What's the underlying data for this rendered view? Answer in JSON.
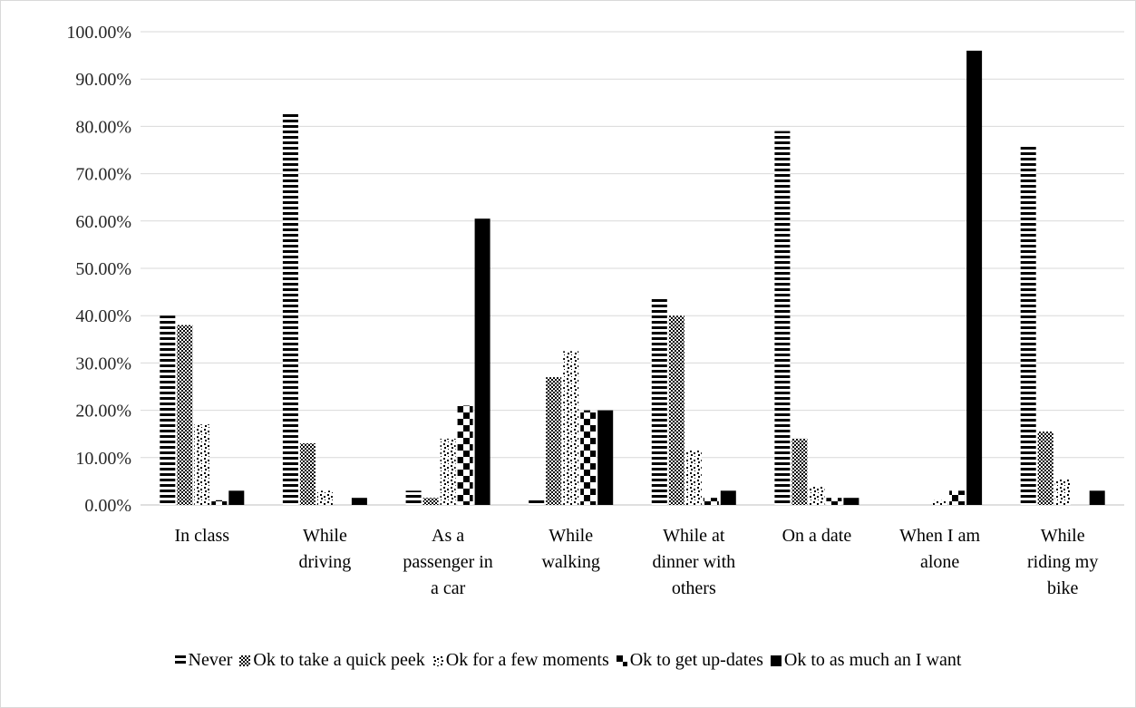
{
  "chart_data": {
    "type": "bar",
    "title": "",
    "xlabel": "",
    "ylabel": "",
    "ylim": [
      0,
      1
    ],
    "yticks": [
      "0.00%",
      "10.00%",
      "20.00%",
      "30.00%",
      "40.00%",
      "50.00%",
      "60.00%",
      "70.00%",
      "80.00%",
      "90.00%",
      "100.00%"
    ],
    "grid": true,
    "legend_position": "bottom",
    "categories": [
      [
        "In class"
      ],
      [
        "While",
        "driving"
      ],
      [
        "As a",
        "passenger in",
        "a car"
      ],
      [
        "While",
        "walking"
      ],
      [
        "While at",
        "dinner with",
        "others"
      ],
      [
        "On a date"
      ],
      [
        "When I am",
        "alone"
      ],
      [
        "While",
        "riding my",
        "bike"
      ]
    ],
    "series": [
      {
        "name": "Never",
        "pattern": "hstripes",
        "values": [
          0.4,
          0.83,
          0.03,
          0.01,
          0.44,
          0.79,
          0.0,
          0.76
        ]
      },
      {
        "name": "Ok to take a quick peek",
        "pattern": "checker",
        "values": [
          0.38,
          0.13,
          0.015,
          0.27,
          0.4,
          0.14,
          0.0,
          0.155
        ]
      },
      {
        "name": "Ok for a few moments",
        "pattern": "dots",
        "values": [
          0.17,
          0.03,
          0.14,
          0.325,
          0.115,
          0.04,
          0.01,
          0.055
        ]
      },
      {
        "name": "Ok to get up-dates",
        "pattern": "bigchecker",
        "values": [
          0.01,
          0.0,
          0.21,
          0.2,
          0.015,
          0.015,
          0.03,
          0.0
        ]
      },
      {
        "name": "Ok to as much an I want",
        "pattern": "solid",
        "values": [
          0.03,
          0.015,
          0.605,
          0.2,
          0.03,
          0.015,
          0.96,
          0.03
        ]
      }
    ],
    "colors": {
      "bar": "#000000",
      "grid": "#d9d9d9",
      "axis": "#bfbfbf"
    }
  }
}
